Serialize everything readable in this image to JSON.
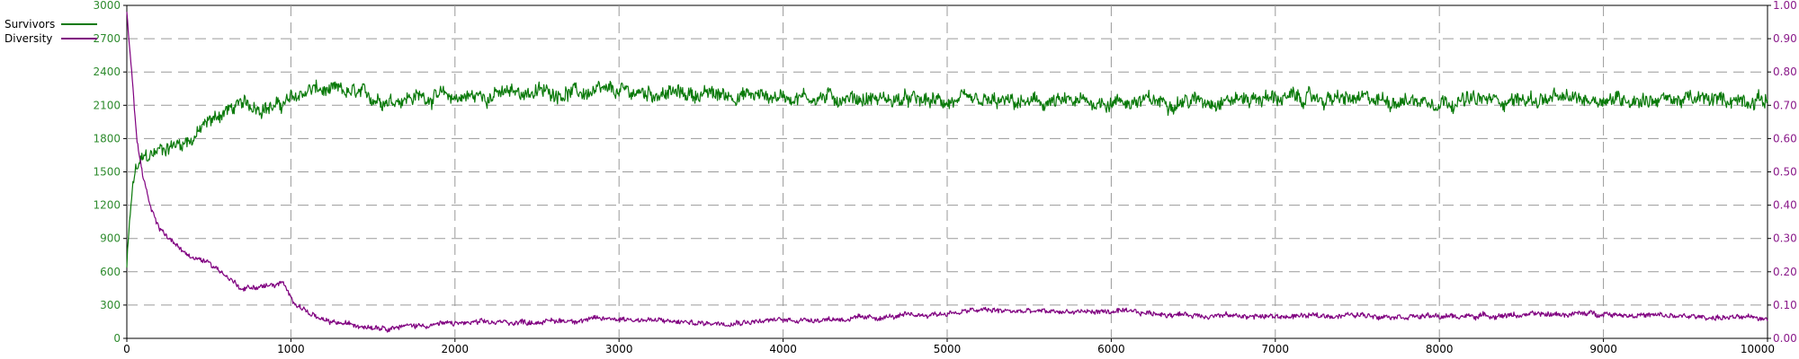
{
  "colors": {
    "survivors": "#0a7a0a",
    "diversity": "#800080",
    "left_axis": "#2e8b2e",
    "right_axis": "#8a1a8a",
    "grid": "#9a9a9a"
  },
  "chart_data": {
    "type": "line",
    "grid": true,
    "legend_position": "top-left",
    "xlim": [
      0,
      10000
    ],
    "x_ticks": [
      "0",
      "1000",
      "2000",
      "3000",
      "4000",
      "5000",
      "6000",
      "7000",
      "8000",
      "9000",
      "10000"
    ],
    "y_left": {
      "lim": [
        0,
        3000
      ],
      "ticks": [
        "0",
        "300",
        "600",
        "900",
        "1200",
        "1500",
        "1800",
        "2100",
        "2400",
        "2700",
        "3000"
      ]
    },
    "y_right": {
      "lim": [
        0,
        1.0
      ],
      "ticks": [
        "0.00",
        "0.10",
        "0.20",
        "0.30",
        "0.40",
        "0.50",
        "0.60",
        "0.70",
        "0.80",
        "0.90",
        "1.00"
      ]
    },
    "series": [
      {
        "name": "Survivors",
        "axis": "left",
        "x": [
          0,
          25,
          50,
          100,
          150,
          200,
          300,
          400,
          500,
          600,
          700,
          800,
          900,
          1000,
          1100,
          1150,
          1200,
          1300,
          1400,
          1500,
          1600,
          1700,
          1800,
          1900,
          2000,
          2200,
          2400,
          2600,
          2800,
          3000,
          3500,
          4000,
          4500,
          5000,
          5500,
          6000,
          6500,
          7000,
          7500,
          8000,
          8500,
          9000,
          9500,
          10000
        ],
        "y": [
          650,
          1200,
          1500,
          1620,
          1650,
          1700,
          1750,
          1800,
          1950,
          2050,
          2100,
          2100,
          2080,
          2150,
          2230,
          2250,
          2220,
          2220,
          2200,
          2170,
          2150,
          2170,
          2180,
          2180,
          2170,
          2190,
          2220,
          2220,
          2210,
          2220,
          2200,
          2180,
          2160,
          2130,
          2120,
          2130,
          2140,
          2170,
          2150,
          2140,
          2150,
          2160,
          2150,
          2150
        ],
        "noise": 100
      },
      {
        "name": "Diversity",
        "axis": "right",
        "x": [
          0,
          30,
          60,
          100,
          150,
          200,
          300,
          400,
          500,
          600,
          700,
          800,
          900,
          950,
          1000,
          1100,
          1200,
          1400,
          1600,
          1800,
          2000,
          2500,
          3000,
          3500,
          4000,
          4500,
          5000,
          5200,
          5500,
          6000,
          6500,
          7000,
          7500,
          8000,
          8500,
          9000,
          9200,
          9500,
          10000
        ],
        "y": [
          0.98,
          0.8,
          0.6,
          0.48,
          0.38,
          0.33,
          0.28,
          0.24,
          0.23,
          0.19,
          0.15,
          0.155,
          0.16,
          0.165,
          0.12,
          0.08,
          0.05,
          0.04,
          0.033,
          0.04,
          0.045,
          0.05,
          0.06,
          0.045,
          0.055,
          0.06,
          0.075,
          0.085,
          0.08,
          0.08,
          0.07,
          0.065,
          0.07,
          0.065,
          0.07,
          0.075,
          0.07,
          0.065,
          0.06
        ],
        "noise": 0.012
      }
    ]
  }
}
